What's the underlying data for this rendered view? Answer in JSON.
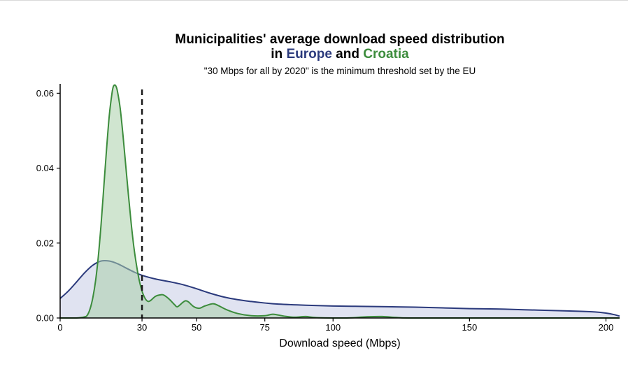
{
  "chart_data": {
    "type": "area",
    "title_line1": "Municipalities' average download speed distribution",
    "title_line2": {
      "prefix": "in ",
      "europe": "Europe",
      "middle": " and ",
      "croatia": "Croatia"
    },
    "subtitle": "\"30 Mbps for all by 2020\" is the minimum threshold set by the EU",
    "xlabel": "Download speed (Mbps)",
    "ylabel": "",
    "xlim": [
      0,
      205
    ],
    "ylim": [
      0,
      0.0625
    ],
    "x_ticks": [
      {
        "value": 0,
        "label": "0"
      },
      {
        "value": 30,
        "label": "30"
      },
      {
        "value": 50,
        "label": "50"
      },
      {
        "value": 75,
        "label": "75"
      },
      {
        "value": 100,
        "label": "100"
      },
      {
        "value": 150,
        "label": "150"
      },
      {
        "value": 200,
        "label": "200"
      }
    ],
    "y_ticks": [
      {
        "value": 0,
        "label": "0.00"
      },
      {
        "value": 0.02,
        "label": "0.02"
      },
      {
        "value": 0.04,
        "label": "0.04"
      },
      {
        "value": 0.06,
        "label": "0.06"
      }
    ],
    "threshold": {
      "x": 30,
      "style": "dashed",
      "color": "#1a1a1a"
    },
    "grid": false,
    "legend": "none (series named by colored words in title)",
    "series": [
      {
        "name": "Europe",
        "line_color": "#2b3a7c",
        "fill_color": "#c7cce6",
        "points": [
          [
            0,
            0.0052
          ],
          [
            3,
            0.0072
          ],
          [
            6,
            0.0096
          ],
          [
            9,
            0.0121
          ],
          [
            12,
            0.0141
          ],
          [
            15,
            0.0152
          ],
          [
            18,
            0.0152
          ],
          [
            21,
            0.0145
          ],
          [
            24,
            0.0134
          ],
          [
            27,
            0.0123
          ],
          [
            30,
            0.0114
          ],
          [
            35,
            0.0104
          ],
          [
            40,
            0.0097
          ],
          [
            45,
            0.0089
          ],
          [
            50,
            0.0078
          ],
          [
            55,
            0.0066
          ],
          [
            60,
            0.0056
          ],
          [
            65,
            0.0049
          ],
          [
            70,
            0.0044
          ],
          [
            75,
            0.004
          ],
          [
            80,
            0.0037
          ],
          [
            90,
            0.0034
          ],
          [
            100,
            0.0032
          ],
          [
            110,
            0.0031
          ],
          [
            120,
            0.003
          ],
          [
            130,
            0.0029
          ],
          [
            140,
            0.0027
          ],
          [
            150,
            0.0025
          ],
          [
            160,
            0.0024
          ],
          [
            170,
            0.0022
          ],
          [
            180,
            0.002
          ],
          [
            190,
            0.0018
          ],
          [
            196,
            0.0016
          ],
          [
            200,
            0.0013
          ],
          [
            203,
            0.0009
          ],
          [
            205,
            0.0005
          ]
        ]
      },
      {
        "name": "Croatia",
        "line_color": "#3c8c3c",
        "fill_color": "#a9cfa9",
        "points": [
          [
            0,
            0.0
          ],
          [
            6,
            0.0
          ],
          [
            9,
            0.0003
          ],
          [
            10,
            0.0008
          ],
          [
            11,
            0.0025
          ],
          [
            12,
            0.0055
          ],
          [
            13,
            0.01
          ],
          [
            14,
            0.0165
          ],
          [
            15,
            0.025
          ],
          [
            16,
            0.035
          ],
          [
            17,
            0.045
          ],
          [
            18,
            0.054
          ],
          [
            19,
            0.06
          ],
          [
            19.5,
            0.0618
          ],
          [
            20,
            0.0622
          ],
          [
            20.5,
            0.0618
          ],
          [
            21,
            0.0605
          ],
          [
            22,
            0.056
          ],
          [
            23,
            0.049
          ],
          [
            24,
            0.041
          ],
          [
            25,
            0.033
          ],
          [
            26,
            0.0255
          ],
          [
            27,
            0.019
          ],
          [
            28,
            0.014
          ],
          [
            29,
            0.01
          ],
          [
            30,
            0.0072
          ],
          [
            31,
            0.0054
          ],
          [
            32,
            0.0045
          ],
          [
            33,
            0.0046
          ],
          [
            35,
            0.0058
          ],
          [
            37,
            0.0062
          ],
          [
            38,
            0.0061
          ],
          [
            40,
            0.005
          ],
          [
            42,
            0.0035
          ],
          [
            43,
            0.003
          ],
          [
            45,
            0.0042
          ],
          [
            46,
            0.0046
          ],
          [
            47,
            0.0043
          ],
          [
            49,
            0.003
          ],
          [
            51,
            0.0026
          ],
          [
            53,
            0.0032
          ],
          [
            56,
            0.0038
          ],
          [
            58,
            0.0033
          ],
          [
            61,
            0.0022
          ],
          [
            65,
            0.0012
          ],
          [
            70,
            0.0006
          ],
          [
            75,
            0.0006
          ],
          [
            78,
            0.001
          ],
          [
            82,
            0.0005
          ],
          [
            86,
            0.0002
          ],
          [
            90,
            0.0004
          ],
          [
            94,
            0.0001
          ],
          [
            105,
            0.0
          ],
          [
            112,
            0.0003
          ],
          [
            118,
            0.0004
          ],
          [
            124,
            0.0001
          ],
          [
            135,
            0.0
          ],
          [
            205,
            0.0
          ]
        ]
      }
    ]
  }
}
